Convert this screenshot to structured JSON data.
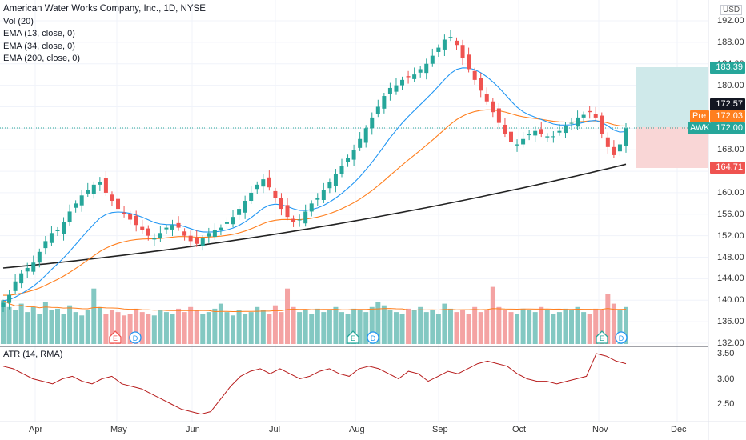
{
  "header": {
    "title": "American Water Works Company, Inc., 1D, NYSE",
    "indicators": [
      "Vol (20)",
      "EMA (13, close, 0)",
      "EMA (34, close, 0)",
      "EMA (200, close, 0)"
    ],
    "currency": "USD"
  },
  "atr_pane": {
    "label": "ATR (14, RMA)"
  },
  "price_axis": {
    "ticks": [
      "192.00",
      "188.00",
      "184.00",
      "180.00",
      "176.00",
      "172.00",
      "168.00",
      "164.00",
      "160.00",
      "156.00",
      "152.00",
      "148.00",
      "144.00",
      "140.00",
      "136.00",
      "132.00"
    ],
    "atr_ticks": [
      "3.50",
      "3.00",
      "2.50"
    ]
  },
  "time_axis": {
    "labels": [
      "Apr",
      "May",
      "Jun",
      "Jul",
      "Aug",
      "Sep",
      "Oct",
      "Nov",
      "Dec"
    ]
  },
  "price_tags": {
    "target": "183.39",
    "high": "172.57",
    "pre_label": "Pre",
    "pre_value": "172.03",
    "symbol": "AWK",
    "last": "172.00",
    "stop": "164.71"
  },
  "markers": {
    "earnings": "E",
    "dividend": "D"
  },
  "colors": {
    "up": "#26a69a",
    "down": "#ef5350",
    "ema13": "#2196f3",
    "ema34": "#ff7f1e",
    "ema200": "#222222",
    "atr": "#b71c1c",
    "target_zone": "#cfe9ea",
    "stop_zone": "#f9d6d6"
  },
  "chart_data": {
    "type": "candlestick",
    "symbol": "AWK",
    "interval": "1D",
    "exchange": "NYSE",
    "ylim": [
      132,
      194
    ],
    "x_months": [
      "Apr",
      "May",
      "Jun",
      "Jul",
      "Aug",
      "Sep",
      "Oct",
      "Nov",
      "Dec"
    ],
    "ohlc_close_approx": [
      139.5,
      141.0,
      143.5,
      145.0,
      146.0,
      147.0,
      149.0,
      151.0,
      152.5,
      153.0,
      154.5,
      156.5,
      158.0,
      159.5,
      160.5,
      161.5,
      162.0,
      160.0,
      158.5,
      157.0,
      156.0,
      155.0,
      154.0,
      153.0,
      152.0,
      151.5,
      152.5,
      153.5,
      154.0,
      153.5,
      152.0,
      151.0,
      150.5,
      151.5,
      152.5,
      153.0,
      153.5,
      154.5,
      155.5,
      157.0,
      158.5,
      160.0,
      161.5,
      162.5,
      161.0,
      159.0,
      157.0,
      155.5,
      154.5,
      155.0,
      156.5,
      158.0,
      159.0,
      160.5,
      162.0,
      163.5,
      165.0,
      166.5,
      168.0,
      170.0,
      172.0,
      174.0,
      176.0,
      178.0,
      179.5,
      180.0,
      181.0,
      181.5,
      182.0,
      183.0,
      184.0,
      185.5,
      187.0,
      188.5,
      189.0,
      187.5,
      185.0,
      183.0,
      181.0,
      179.0,
      177.0,
      175.0,
      173.0,
      171.0,
      169.5,
      169.0,
      170.0,
      171.0,
      171.5,
      171.0,
      170.5,
      170.5,
      171.5,
      172.5,
      173.0,
      174.0,
      174.5,
      175.0,
      174.0,
      171.0,
      168.5,
      167.0,
      169.0,
      172.0
    ],
    "volume_approx": [
      52,
      44,
      40,
      48,
      38,
      44,
      36,
      50,
      40,
      42,
      36,
      46,
      38,
      34,
      40,
      66,
      44,
      36,
      40,
      38,
      34,
      36,
      42,
      38,
      36,
      34,
      40,
      38,
      36,
      42,
      38,
      44,
      40,
      36,
      38,
      42,
      48,
      38,
      34,
      40,
      36,
      38,
      44,
      40,
      36,
      46,
      38,
      66,
      44,
      38,
      40,
      36,
      42,
      38,
      40,
      44,
      38,
      36,
      42,
      40,
      38,
      44,
      50,
      46,
      40,
      38,
      36,
      42,
      40,
      44,
      38,
      40,
      36,
      48,
      42,
      38,
      40,
      36,
      44,
      38,
      40,
      68,
      44,
      40,
      38,
      36,
      42,
      40,
      38,
      44,
      40,
      36,
      38,
      42,
      40,
      44,
      38,
      36,
      42,
      40,
      60,
      48,
      40,
      44
    ],
    "ema13_approx_start_end": [
      140.0,
      172.9
    ],
    "ema34_approx_start_end": [
      141.0,
      173.6
    ],
    "ema200_approx_start_end": [
      146.0,
      165.3
    ],
    "atr_approx": [
      3.25,
      3.2,
      3.1,
      3.0,
      2.95,
      2.9,
      3.0,
      3.05,
      2.95,
      2.9,
      3.0,
      3.05,
      2.9,
      2.85,
      2.8,
      2.7,
      2.6,
      2.5,
      2.4,
      2.35,
      2.3,
      2.35,
      2.6,
      2.85,
      3.05,
      3.15,
      3.2,
      3.1,
      3.2,
      3.1,
      3.0,
      3.05,
      3.15,
      3.2,
      3.1,
      3.05,
      3.2,
      3.25,
      3.2,
      3.1,
      3.0,
      3.15,
      3.1,
      2.95,
      3.05,
      3.15,
      3.1,
      3.2,
      3.3,
      3.35,
      3.3,
      3.25,
      3.1,
      3.0,
      2.95,
      2.95,
      2.9,
      2.95,
      3.0,
      3.05,
      3.5,
      3.45,
      3.35,
      3.3
    ],
    "risk_reward": {
      "target": 183.39,
      "entry": 172.0,
      "stop": 164.71
    }
  }
}
